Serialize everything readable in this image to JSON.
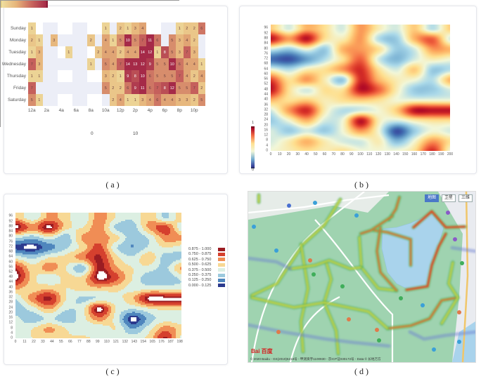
{
  "captions": {
    "a": "( a )",
    "b": "( b )",
    "c": "( c )",
    "d": "( d )"
  },
  "chart_data": [
    {
      "id": "a",
      "type": "heatmap",
      "y_categories": [
        "Sunday",
        "Monday",
        "Tuesday",
        "Wednesday",
        "Thursday",
        "Friday",
        "Saturday"
      ],
      "x_tick_labels": [
        "12a",
        "2a",
        "4a",
        "6a",
        "8a",
        "10a",
        "12p",
        "2p",
        "4p",
        "6p",
        "8p",
        "10p"
      ],
      "hours": 24,
      "values": [
        [
          1,
          null,
          null,
          null,
          null,
          null,
          null,
          null,
          null,
          null,
          1,
          null,
          2,
          1,
          3,
          4,
          null,
          null,
          null,
          null,
          1,
          2,
          2,
          6
        ],
        [
          2,
          1,
          null,
          3,
          null,
          null,
          null,
          null,
          2,
          null,
          4,
          1,
          5,
          10,
          5,
          7,
          11,
          6,
          null,
          5,
          3,
          4,
          2,
          null
        ],
        [
          1,
          3,
          null,
          null,
          null,
          1,
          null,
          null,
          null,
          2,
          4,
          4,
          2,
          4,
          4,
          14,
          12,
          1,
          8,
          5,
          3,
          7,
          3,
          null
        ],
        [
          7,
          3,
          null,
          null,
          null,
          null,
          null,
          null,
          1,
          null,
          5,
          4,
          7,
          14,
          13,
          12,
          9,
          5,
          5,
          10,
          6,
          4,
          4,
          1
        ],
        [
          1,
          1,
          null,
          null,
          null,
          null,
          null,
          null,
          null,
          null,
          3,
          2,
          1,
          9,
          8,
          10,
          6,
          5,
          5,
          5,
          7,
          4,
          2,
          4
        ],
        [
          7,
          null,
          null,
          null,
          null,
          null,
          null,
          null,
          null,
          null,
          5,
          2,
          2,
          6,
          9,
          11,
          6,
          7,
          8,
          12,
          5,
          5,
          7,
          2
        ],
        [
          5,
          1,
          null,
          null,
          null,
          null,
          null,
          null,
          null,
          null,
          null,
          2,
          4,
          1,
          1,
          3,
          4,
          6,
          4,
          4,
          3,
          3,
          2,
          5
        ]
      ],
      "visual_map": {
        "min": 0,
        "max": 10,
        "min_label": "0",
        "max_label": "10",
        "colors": [
          "#efe0a0",
          "#e6b47a",
          "#c8665e",
          "#a52a48"
        ]
      }
    },
    {
      "id": "b",
      "type": "heatmap",
      "x_ticks": [
        0,
        10,
        20,
        30,
        40,
        50,
        60,
        70,
        80,
        90,
        100,
        110,
        120,
        130,
        140,
        150,
        160,
        170,
        180,
        190,
        200
      ],
      "y_ticks": [
        0,
        4,
        8,
        12,
        16,
        20,
        24,
        28,
        32,
        36,
        40,
        44,
        48,
        52,
        56,
        60,
        64,
        68,
        72,
        76,
        80,
        84,
        88,
        92,
        96
      ],
      "xlim": [
        0,
        200
      ],
      "ylim": [
        0,
        99
      ],
      "grid_x": [
        0,
        20,
        40,
        60,
        80,
        100,
        120,
        140,
        160,
        180,
        200
      ],
      "grid_y": [
        0,
        8,
        16,
        24,
        32,
        40,
        48,
        56,
        64,
        72,
        80,
        88,
        96
      ],
      "grid_values": [
        [
          0.45,
          0.5,
          0.55,
          0.5,
          0.55,
          0.45,
          0.45,
          0.45,
          0.55,
          0.9,
          0.45
        ],
        [
          0.4,
          0.5,
          0.65,
          0.5,
          0.4,
          0.4,
          0.5,
          0.25,
          0.45,
          0.7,
          0.55
        ],
        [
          0.4,
          0.3,
          0.4,
          0.3,
          0.45,
          0.7,
          0.45,
          0.05,
          0.3,
          0.45,
          0.4
        ],
        [
          0.3,
          0.45,
          0.65,
          0.4,
          0.45,
          0.95,
          0.5,
          0.4,
          0.5,
          0.55,
          0.55
        ],
        [
          0.4,
          0.7,
          0.9,
          0.5,
          0.35,
          0.4,
          0.45,
          0.6,
          0.95,
          0.95,
          0.95
        ],
        [
          0.65,
          0.55,
          0.6,
          0.5,
          0.55,
          0.6,
          0.55,
          0.45,
          0.45,
          0.45,
          0.45
        ],
        [
          0.95,
          0.55,
          0.4,
          0.55,
          0.55,
          0.95,
          0.8,
          0.5,
          0.3,
          0.3,
          0.4
        ],
        [
          0.85,
          0.55,
          0.7,
          0.5,
          0.3,
          0.9,
          0.65,
          0.5,
          0.45,
          0.35,
          0.65
        ],
        [
          0.45,
          0.35,
          0.5,
          0.55,
          0.7,
          0.9,
          0.55,
          0.4,
          0.6,
          0.3,
          0.35
        ],
        [
          0.1,
          0.05,
          0.2,
          0.35,
          0.55,
          0.8,
          0.4,
          0.25,
          0.4,
          0.5,
          0.45
        ],
        [
          0.4,
          0.3,
          0.45,
          0.3,
          0.65,
          0.7,
          0.55,
          0.3,
          0.4,
          0.7,
          0.65
        ],
        [
          0.95,
          0.7,
          0.95,
          0.55,
          0.5,
          0.7,
          0.35,
          0.3,
          0.65,
          0.8,
          0.4
        ],
        [
          0.6,
          0.4,
          0.65,
          0.55,
          0.4,
          0.7,
          0.5,
          0.4,
          0.6,
          0.35,
          0.6
        ]
      ],
      "colorbar": {
        "max_label": "1",
        "min_label": "0"
      },
      "colors": [
        "#313695",
        "#4575b4",
        "#74add1",
        "#abd9e9",
        "#f2f7d8",
        "#fee090",
        "#fdae61",
        "#f46d43",
        "#d73027",
        "#a50026"
      ]
    },
    {
      "id": "c",
      "type": "heatmap",
      "x_ticks": [
        0,
        11,
        22,
        33,
        44,
        55,
        66,
        77,
        88,
        99,
        110,
        121,
        132,
        143,
        154,
        165,
        176,
        187,
        198
      ],
      "y_ticks": [
        0,
        4,
        8,
        12,
        16,
        20,
        24,
        28,
        32,
        36,
        40,
        44,
        48,
        52,
        56,
        60,
        64,
        68,
        72,
        76,
        80,
        84,
        88,
        92,
        96
      ],
      "xlim": [
        0,
        200
      ],
      "ylim": [
        0,
        99
      ],
      "field": "same as chart b",
      "legend": [
        {
          "label": "0.875 - 1.000",
          "color": "#9b1c22"
        },
        {
          "label": "0.750 - 0.875",
          "color": "#d5402e"
        },
        {
          "label": "0.625 - 0.750",
          "color": "#f08d55"
        },
        {
          "label": "0.500 - 0.625",
          "color": "#f7d894"
        },
        {
          "label": "0.375 - 0.500",
          "color": "#dcefe2"
        },
        {
          "label": "0.250 - 0.375",
          "color": "#9cc9dd"
        },
        {
          "label": "0.125 - 0.250",
          "color": "#4f86bd"
        },
        {
          "label": "0.000 - 0.125",
          "color": "#2c3a8e"
        }
      ]
    }
  ],
  "map": {
    "controls": [
      {
        "label": "地图",
        "active": true
      },
      {
        "label": "卫星",
        "active": false
      },
      {
        "label": "三维",
        "active": false
      }
    ],
    "copyright": "© 2020 Baidu - GS(2019)5218号 - 甲测资字1100930 - 京ICP证030173号 - Data © 长地万方",
    "logo": "Bai 百度",
    "colors": {
      "land": "#9fd3b0",
      "lake": "#a9d3ec",
      "road": "#ffffff",
      "heat_low": "#2fae5a",
      "heat_mid": "#f3e23a",
      "heat_high": "#e8231b"
    }
  }
}
